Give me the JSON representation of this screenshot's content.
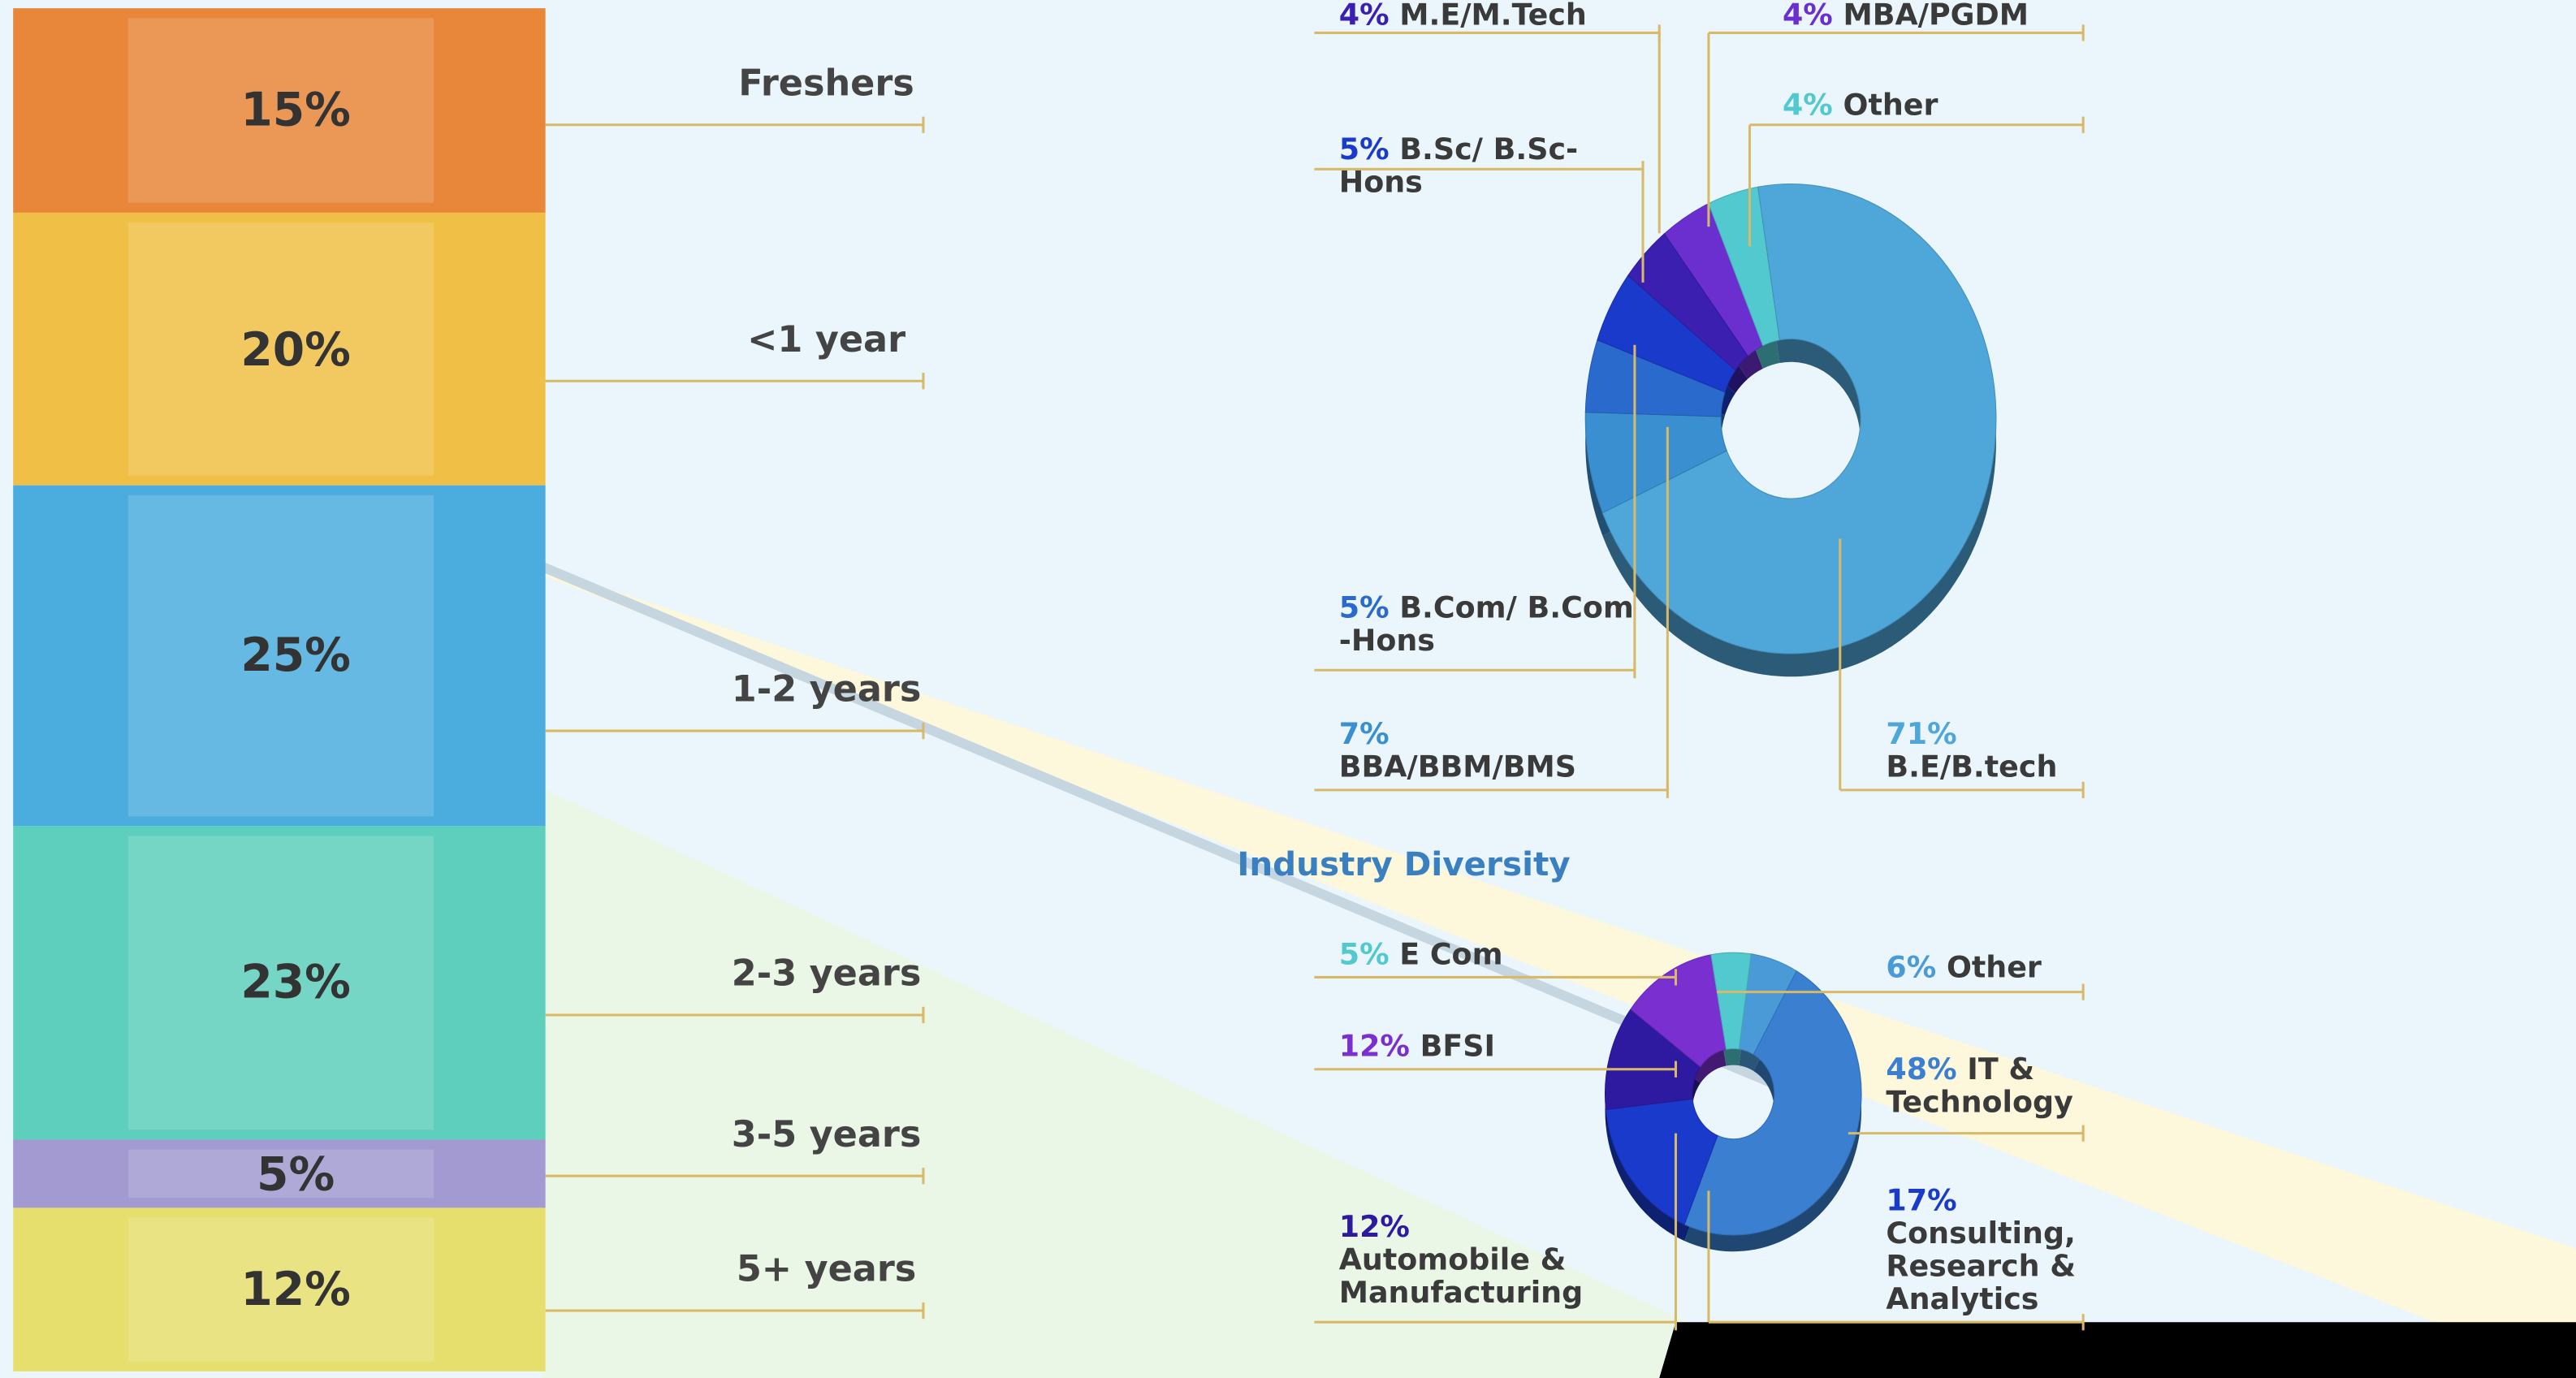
{
  "chart_data": [
    {
      "type": "stacked-column",
      "categories": [
        "Freshers",
        "<1 year",
        "1-2 years",
        "2-3 years",
        "3-5 years",
        "5+ years"
      ],
      "values": [
        15,
        20,
        25,
        23,
        5,
        12
      ],
      "value_labels": [
        "15%",
        "20%",
        "25%",
        "23%",
        "5%",
        "12%"
      ],
      "colors": [
        "#e8873a",
        "#f0bf45",
        "#4badde",
        "#5dcfbc",
        "#a29ad0",
        "#e6df6e"
      ]
    },
    {
      "type": "donut",
      "categories": [
        "MBA/PGDM",
        "Other",
        "B.E/B.tech",
        "BBA/BBM/BMS",
        "B.Com/ B.Com -Hons",
        "B.Sc/ B.Sc-Hons",
        "M.E/M.Tech"
      ],
      "values": [
        4,
        4,
        71,
        7,
        5,
        5,
        4
      ],
      "value_labels": [
        "4%",
        "4%",
        "71%",
        "7%",
        "5%",
        "5%",
        "4%"
      ],
      "colors": [
        "#6b2fd0",
        "#52c8cf",
        "#4fa6d8",
        "#3a8fd0",
        "#2a6acc",
        "#1a3acc",
        "#3a1fb0"
      ]
    },
    {
      "type": "donut",
      "title": "Industry Diversity",
      "categories": [
        "Other",
        "IT & Technology",
        "Consulting, Research & Analytics",
        "Automobile & Manufacturing",
        "BFSI",
        "E Com"
      ],
      "values": [
        6,
        48,
        17,
        12,
        12,
        5
      ],
      "value_labels": [
        "6%",
        "48%",
        "17%",
        "12%",
        "12%",
        "5%"
      ],
      "colors": [
        "#4a9ad8",
        "#3a7fd0",
        "#1a3acc",
        "#2e1aa0",
        "#7a2fd0",
        "#52c8cf"
      ]
    }
  ]
}
